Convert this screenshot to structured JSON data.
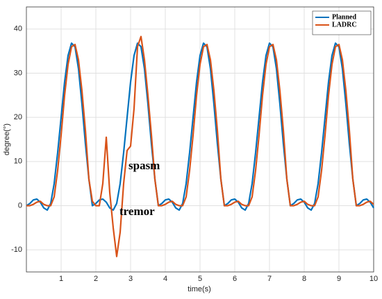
{
  "chart_data": {
    "type": "line",
    "xlabel": "time(s)",
    "ylabel": "degree(°)",
    "x": [
      0,
      0.1,
      0.2,
      0.3,
      0.4,
      0.5,
      0.6,
      0.7,
      0.8,
      0.9,
      1,
      1.1,
      1.2,
      1.3,
      1.4,
      1.5,
      1.6,
      1.7,
      1.8,
      1.9,
      2,
      2.1,
      2.2,
      2.3,
      2.4,
      2.5,
      2.6,
      2.7,
      2.8,
      2.9,
      3,
      3.1,
      3.2,
      3.3,
      3.4,
      3.5,
      3.6,
      3.7,
      3.8,
      3.9,
      4,
      4.1,
      4.2,
      4.3,
      4.4,
      4.5,
      4.6,
      4.7,
      4.8,
      4.9,
      5,
      5.1,
      5.2,
      5.3,
      5.4,
      5.5,
      5.6,
      5.7,
      5.8,
      5.9,
      6,
      6.1,
      6.2,
      6.3,
      6.4,
      6.5,
      6.6,
      6.7,
      6.8,
      6.9,
      7,
      7.1,
      7.2,
      7.3,
      7.4,
      7.5,
      7.6,
      7.7,
      7.8,
      7.9,
      8,
      8.1,
      8.2,
      8.3,
      8.4,
      8.5,
      8.6,
      8.7,
      8.8,
      8.9,
      9,
      9.1,
      9.2,
      9.3,
      9.4,
      9.5,
      9.6,
      9.7,
      9.8,
      9.9,
      10
    ],
    "series": [
      {
        "name": "Planned",
        "color": "#0072bd",
        "values": [
          0,
          0.5,
          1.3,
          1.5,
          0.8,
          -0.5,
          -1,
          0.5,
          5,
          12,
          20,
          28,
          34,
          36.8,
          36,
          31,
          23,
          14,
          6,
          0,
          0.5,
          1.3,
          1.5,
          0.8,
          -0.5,
          -1,
          0.5,
          5,
          12,
          20,
          28,
          34,
          36.8,
          36,
          31,
          23,
          14,
          6,
          0,
          0.5,
          1.3,
          1.5,
          0.8,
          -0.5,
          -1,
          0.5,
          5,
          12,
          20,
          28,
          34,
          36.8,
          36,
          31,
          23,
          14,
          6,
          0,
          0.5,
          1.3,
          1.5,
          0.8,
          -0.5,
          -1,
          0.5,
          5,
          12,
          20,
          28,
          34,
          36.8,
          36,
          31,
          23,
          14,
          6,
          0,
          0.5,
          1.3,
          1.5,
          0.8,
          -0.5,
          -1,
          0.5,
          5,
          12,
          20,
          28,
          34,
          36.8,
          36,
          31,
          23,
          14,
          6,
          0,
          0.5,
          1.3,
          1.5,
          0.8,
          -0.5
        ]
      },
      {
        "name": "LADRC",
        "color": "#d95319",
        "values": [
          0,
          0,
          0.3,
          0.8,
          1,
          0.3,
          0,
          0,
          2,
          8,
          16,
          25,
          32,
          36,
          36.5,
          33,
          26,
          17,
          6,
          1,
          0,
          0,
          5,
          15.5,
          3,
          -5,
          -11.5,
          -6,
          5,
          12.5,
          13.5,
          22,
          36,
          38.3,
          33,
          25,
          16,
          6,
          0,
          0,
          0.3,
          0.8,
          1,
          0.3,
          0,
          0,
          2,
          8,
          16,
          25,
          32,
          36,
          36.5,
          33,
          26,
          17,
          6,
          0,
          0,
          0.3,
          0.8,
          1,
          0.3,
          0,
          0,
          2,
          8,
          16,
          25,
          32,
          36,
          36.5,
          33,
          26,
          17,
          6,
          0,
          0,
          0.3,
          0.8,
          1,
          0.3,
          0,
          0,
          2,
          8,
          16,
          25,
          32,
          36,
          36.5,
          33,
          26,
          17,
          6,
          0,
          0,
          0.3,
          0.8,
          1,
          0.3
        ]
      }
    ],
    "annotations": [
      "spasm",
      "tremor"
    ],
    "xlim": [
      0,
      10
    ],
    "xticks": [
      1,
      2,
      3,
      4,
      5,
      6,
      7,
      8,
      9,
      10
    ],
    "ylim": [
      -15,
      45
    ],
    "yticks": [
      -10,
      0,
      10,
      20,
      30,
      40
    ],
    "grid": true,
    "legend": "upper right"
  }
}
